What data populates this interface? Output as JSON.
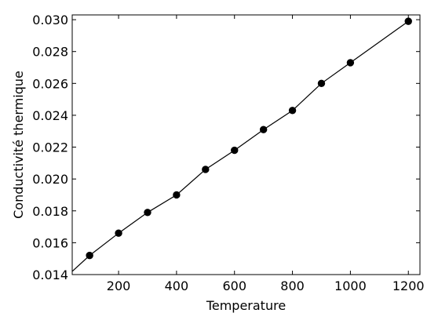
{
  "chart_data": {
    "type": "line",
    "title": "",
    "xlabel": "Temperature",
    "ylabel": "Conductivité thermique",
    "xlim": [
      40,
      1240
    ],
    "ylim": [
      0.014,
      0.0303
    ],
    "grid": false,
    "line_color": "#000000",
    "marker_color": "#000000",
    "x_ticks": [
      200,
      400,
      600,
      800,
      1000,
      1200
    ],
    "x_tick_labels": [
      "200",
      "400",
      "600",
      "800",
      "1000",
      "1200"
    ],
    "y_ticks": [
      0.014,
      0.016,
      0.018,
      0.02,
      0.022,
      0.024,
      0.026,
      0.028,
      0.03
    ],
    "y_tick_labels": [
      "0.014",
      "0.016",
      "0.018",
      "0.020",
      "0.022",
      "0.024",
      "0.026",
      "0.028",
      "0.030"
    ],
    "line_x": [
      40,
      100
    ],
    "line_y": [
      0.0142,
      0.0152
    ],
    "x": [
      100,
      200,
      300,
      400,
      500,
      600,
      700,
      800,
      900,
      1000,
      1200
    ],
    "y": [
      0.0152,
      0.0166,
      0.0179,
      0.019,
      0.0206,
      0.0218,
      0.0231,
      0.0243,
      0.026,
      0.0273,
      0.0299
    ]
  }
}
